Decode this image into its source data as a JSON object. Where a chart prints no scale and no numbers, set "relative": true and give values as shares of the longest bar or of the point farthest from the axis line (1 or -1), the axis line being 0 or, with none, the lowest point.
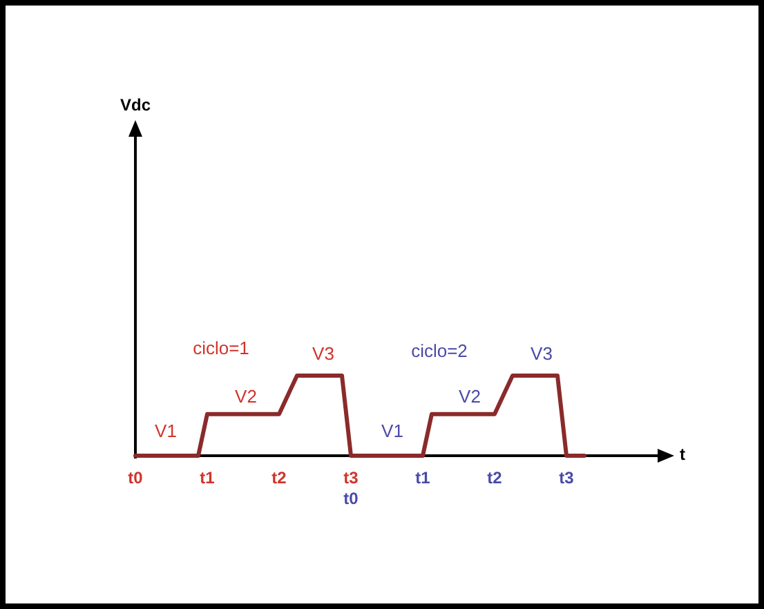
{
  "chart_data": {
    "type": "line",
    "relative": true,
    "categories": [
      "t0",
      null,
      null,
      null,
      null,
      null,
      null,
      null,
      "t1",
      null,
      null,
      null,
      null,
      null,
      null,
      null,
      "t2",
      null,
      null,
      null,
      null,
      null,
      null,
      null,
      "t3",
      null,
      null,
      null,
      null,
      null,
      null,
      null,
      "t1",
      null,
      null,
      null,
      null,
      null,
      null,
      null,
      "t2",
      null,
      null,
      null,
      null,
      null,
      null,
      null,
      "t3",
      null,
      null
    ],
    "series": [
      {
        "color": "#8b2a2a",
        "values": [
          0,
          0,
          0,
          0,
          0,
          0,
          0,
          0,
          0.52,
          0.52,
          0.52,
          0.52,
          0.52,
          0.52,
          0.52,
          0.52,
          0.52,
          0.76,
          1,
          1,
          1,
          1,
          1,
          1,
          0,
          0,
          0,
          0,
          0,
          0,
          0,
          0,
          0,
          0.52,
          0.52,
          0.52,
          0.52,
          0.52,
          0.52,
          0.52,
          0.52,
          0.76,
          1,
          1,
          1,
          1,
          1,
          1,
          0,
          0,
          0
        ]
      }
    ],
    "annotations": [
      "ciclo=1",
      "V1",
      "V2",
      "V3",
      "ciclo=2",
      "V1",
      "V2",
      "V3",
      "t0",
      "Vdc",
      "t"
    ],
    "marker": "none",
    "line_style": "solid",
    "grid": false
  }
}
